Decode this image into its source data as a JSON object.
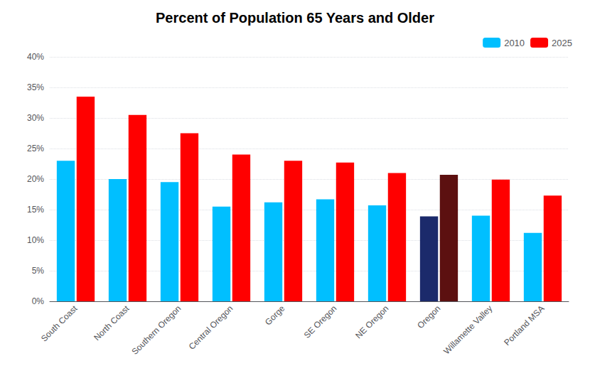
{
  "chart_data": {
    "type": "bar",
    "title": "Percent of Population 65 Years and Older",
    "categories": [
      "South Coast",
      "North Coast",
      "Southern Oregon",
      "Central Oregon",
      "Gorge",
      "SE Oregon",
      "NE Oregon",
      "Oregon",
      "Willamette Valley",
      "Portland MSA"
    ],
    "series": [
      {
        "name": "2010",
        "color": "#00BFFF",
        "colors": [
          "#00BFFF",
          "#00BFFF",
          "#00BFFF",
          "#00BFFF",
          "#00BFFF",
          "#00BFFF",
          "#00BFFF",
          "#1B2A6B",
          "#00BFFF",
          "#00BFFF"
        ],
        "values": [
          23.0,
          20.0,
          19.5,
          15.5,
          16.2,
          16.7,
          15.7,
          13.9,
          14.0,
          11.2
        ]
      },
      {
        "name": "2025",
        "color": "#FF0000",
        "colors": [
          "#FF0000",
          "#FF0000",
          "#FF0000",
          "#FF0000",
          "#FF0000",
          "#FF0000",
          "#FF0000",
          "#5C1010",
          "#FF0000",
          "#FF0000"
        ],
        "values": [
          33.5,
          30.5,
          27.5,
          24.0,
          23.0,
          22.7,
          21.0,
          20.7,
          19.9,
          17.3
        ]
      }
    ],
    "ylim": [
      0,
      40
    ],
    "yticks": [
      {
        "value": 0,
        "label": "0%"
      },
      {
        "value": 5,
        "label": "5%"
      },
      {
        "value": 10,
        "label": "10%"
      },
      {
        "value": 15,
        "label": "15%"
      },
      {
        "value": 20,
        "label": "20%"
      },
      {
        "value": 25,
        "label": "25%"
      },
      {
        "value": 30,
        "label": "30%"
      },
      {
        "value": 35,
        "label": "35%"
      },
      {
        "value": 40,
        "label": "40%"
      }
    ],
    "grid": true,
    "legend": "upper right"
  }
}
